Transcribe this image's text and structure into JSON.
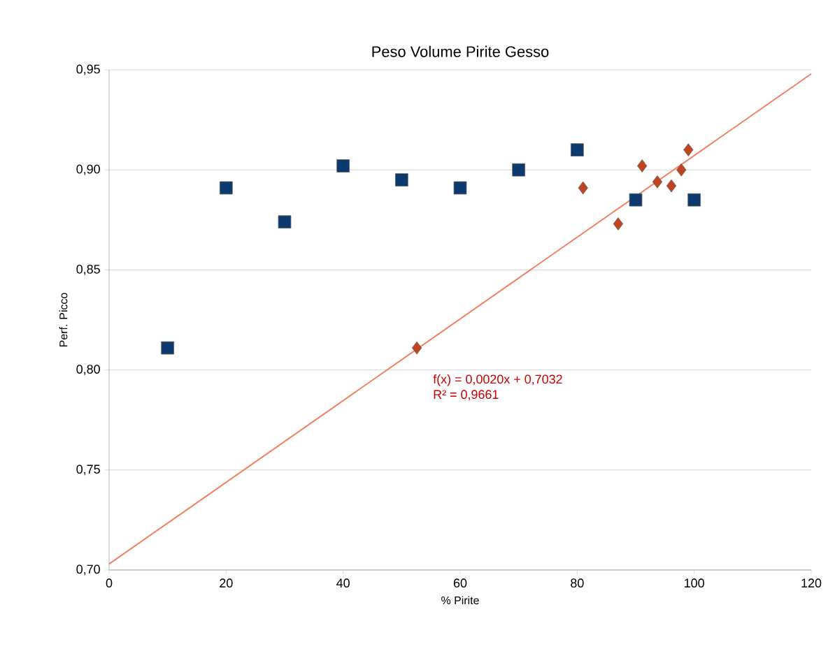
{
  "chart_data": {
    "type": "scatter",
    "title": "Peso Volume Pirite Gesso",
    "xlabel": "% Pirite",
    "ylabel": "Perf. Picco",
    "xlim": [
      0,
      120
    ],
    "xticks": [
      0,
      20,
      40,
      60,
      80,
      100,
      120
    ],
    "ylim": [
      0.7,
      0.95
    ],
    "yticks": [
      {
        "value": 0.7,
        "label": "0,70"
      },
      {
        "value": 0.75,
        "label": "0,75"
      },
      {
        "value": 0.8,
        "label": "0,80"
      },
      {
        "value": 0.85,
        "label": "0,85"
      },
      {
        "value": 0.9,
        "label": "0,90"
      },
      {
        "value": 0.95,
        "label": "0,95"
      }
    ],
    "grid": "y",
    "series": [
      {
        "marker": "square",
        "color": "#0d3a6e",
        "x": [
          10,
          20,
          30,
          40,
          50,
          60,
          70,
          80,
          90,
          100
        ],
        "values": [
          0.811,
          0.891,
          0.874,
          0.902,
          0.895,
          0.891,
          0.9,
          0.91,
          0.885,
          0.885
        ]
      },
      {
        "marker": "diamond",
        "color": "#c0451e",
        "x": [
          52.6,
          81,
          87,
          91.1,
          93.7,
          96.1,
          97.8,
          99
        ],
        "values": [
          0.811,
          0.891,
          0.873,
          0.902,
          0.894,
          0.892,
          0.9,
          0.91
        ]
      },
      {
        "type": "line",
        "marker": "none",
        "color": "#f08060",
        "x": [
          0,
          120
        ],
        "values": [
          0.703,
          0.948
        ]
      }
    ],
    "annotations": [
      "f(x) = 0,0020x + 0,7032",
      "R² = 0,9661"
    ]
  }
}
